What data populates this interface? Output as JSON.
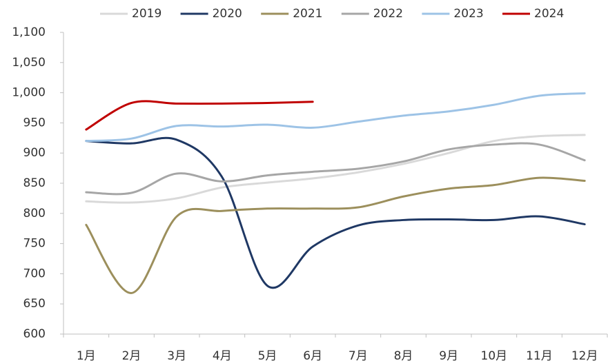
{
  "chart_data": {
    "type": "line",
    "categories": [
      "1月",
      "2月",
      "3月",
      "4月",
      "5月",
      "6月",
      "7月",
      "8月",
      "9月",
      "10月",
      "11月",
      "12月"
    ],
    "series": [
      {
        "name": "2019",
        "color": "#d9d9d9",
        "values": [
          820,
          818,
          825,
          843,
          851,
          858,
          868,
          882,
          900,
          920,
          928,
          930
        ]
      },
      {
        "name": "2020",
        "color": "#1f3864",
        "values": [
          920,
          916,
          922,
          860,
          680,
          745,
          780,
          789,
          790,
          789,
          795,
          782
        ]
      },
      {
        "name": "2021",
        "color": "#9c8f5c",
        "values": [
          781,
          668,
          795,
          804,
          808,
          808,
          810,
          828,
          841,
          847,
          859,
          854
        ]
      },
      {
        "name": "2022",
        "color": "#a6a6a6",
        "values": [
          835,
          834,
          866,
          853,
          863,
          869,
          874,
          886,
          906,
          914,
          914,
          888
        ]
      },
      {
        "name": "2023",
        "color": "#9dc3e6",
        "values": [
          920,
          924,
          945,
          944,
          947,
          942,
          952,
          962,
          969,
          980,
          995,
          999
        ]
      },
      {
        "name": "2024",
        "color": "#c00000",
        "values": [
          939,
          983,
          982,
          982,
          983,
          985,
          null,
          null,
          null,
          null,
          null,
          null
        ]
      }
    ],
    "ylim": [
      600,
      1100
    ],
    "yticks": [
      600,
      650,
      700,
      750,
      800,
      850,
      900,
      950,
      {
        "value": 1000,
        "label": "1,000"
      },
      {
        "value": 1050,
        "label": "1,050"
      },
      {
        "value": 1100,
        "label": "1,100"
      }
    ],
    "grid": false,
    "legend": "top"
  }
}
